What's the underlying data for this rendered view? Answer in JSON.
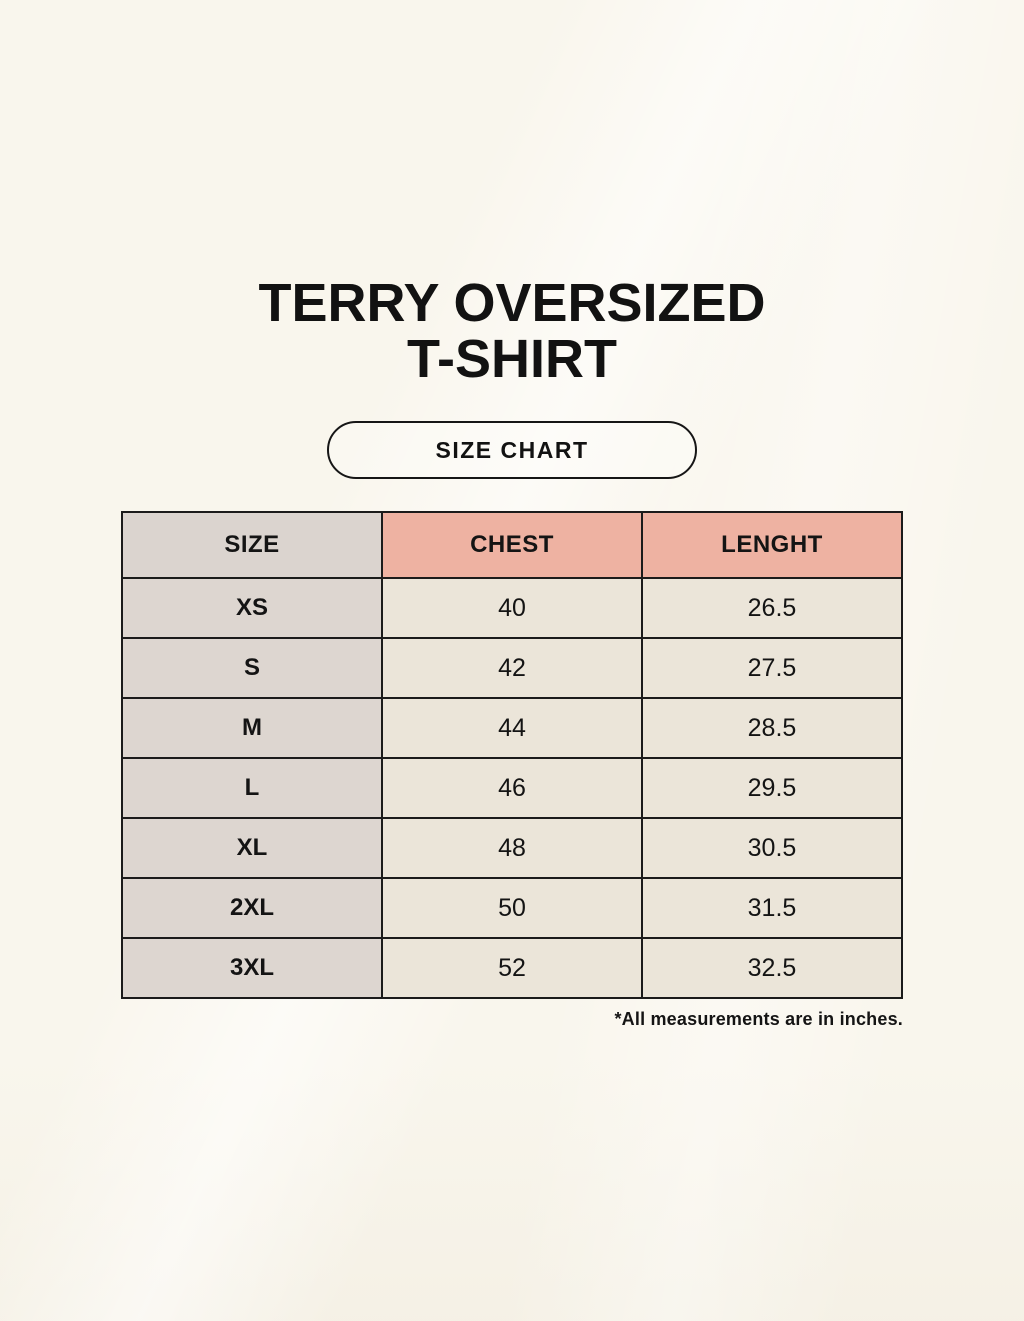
{
  "header": {
    "title_line1": "TERRY OVERSIZED",
    "title_line2": "T-SHIRT",
    "size_chart_label": "SIZE CHART"
  },
  "colors": {
    "page_bg": "#f9f6ed",
    "size_header_bg": "#dbd4cf",
    "measure_header_bg": "#eeb2a2",
    "label_col_bg": "#ddd6d0",
    "value_cell_bg": "#ebe5d9",
    "table_border": "#1b1b1b",
    "text": "#141414"
  },
  "chart_data": {
    "type": "table",
    "title": "TERRY OVERSIZED T-SHIRT",
    "subtitle": "SIZE CHART",
    "columns": [
      "SIZE",
      "CHEST",
      "LENGHT"
    ],
    "rows": [
      [
        "XS",
        "40",
        "26.5"
      ],
      [
        "S",
        "42",
        "27.5"
      ],
      [
        "M",
        "44",
        "28.5"
      ],
      [
        "L",
        "46",
        "29.5"
      ],
      [
        "XL",
        "48",
        "30.5"
      ],
      [
        "2XL",
        "50",
        "31.5"
      ],
      [
        "3XL",
        "52",
        "32.5"
      ]
    ],
    "note": "*All measurements are in inches."
  }
}
